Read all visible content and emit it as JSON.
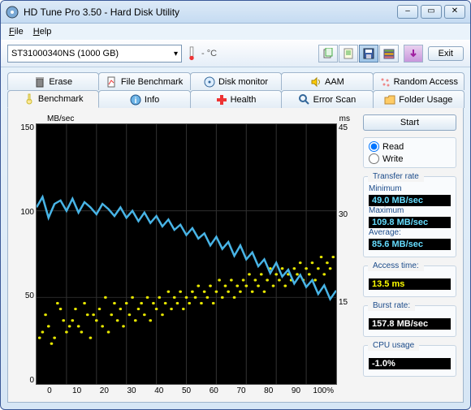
{
  "title": "HD Tune Pro 3.50 - Hard Disk Utility",
  "menu": {
    "file": "File",
    "help": "Help"
  },
  "drive": "ST31000340NS (1000 GB)",
  "temp_label": "- °C",
  "exit_label": "Exit",
  "tabs_top": {
    "erase": "Erase",
    "file_bench": "File Benchmark",
    "disk_mon": "Disk monitor",
    "aam": "AAM",
    "random": "Random Access"
  },
  "tabs_bottom": {
    "benchmark": "Benchmark",
    "info": "Info",
    "health": "Health",
    "error": "Error Scan",
    "folder": "Folder Usage"
  },
  "start_label": "Start",
  "mode": {
    "read": "Read",
    "write": "Write",
    "selected": "read"
  },
  "stats": {
    "transfer_hdr": "Transfer rate",
    "min_label": "Minimum",
    "min_val": "49.0 MB/sec",
    "max_label": "Maximum",
    "max_val": "109.8 MB/sec",
    "avg_label": "Average:",
    "avg_val": "85.6 MB/sec",
    "access_hdr": "Access time:",
    "access_val": "13.5 ms",
    "burst_hdr": "Burst rate:",
    "burst_val": "157.8 MB/sec",
    "cpu_hdr": "CPU usage",
    "cpu_val": "-1.0%"
  },
  "chart": {
    "y_left_label": "MB/sec",
    "y_right_label": "ms",
    "y_left_ticks": [
      "150",
      "100",
      "50",
      "0"
    ],
    "y_right_ticks": [
      "45",
      "30",
      "15",
      ""
    ],
    "x_ticks": [
      "0",
      "10",
      "20",
      "30",
      "40",
      "50",
      "60",
      "70",
      "80",
      "90",
      "100%"
    ],
    "line_color": "#48b4e6",
    "scatter_color": "#e6e600",
    "grid_color": "#2e2e2e",
    "background": "#000000",
    "transfer_points": [
      [
        0,
        102
      ],
      [
        2,
        108
      ],
      [
        4,
        96
      ],
      [
        6,
        104
      ],
      [
        8,
        106
      ],
      [
        10,
        100
      ],
      [
        12,
        107
      ],
      [
        14,
        99
      ],
      [
        16,
        105
      ],
      [
        18,
        102
      ],
      [
        20,
        98
      ],
      [
        22,
        104
      ],
      [
        24,
        101
      ],
      [
        26,
        97
      ],
      [
        28,
        102
      ],
      [
        30,
        96
      ],
      [
        32,
        100
      ],
      [
        34,
        94
      ],
      [
        36,
        99
      ],
      [
        38,
        93
      ],
      [
        40,
        97
      ],
      [
        42,
        91
      ],
      [
        44,
        95
      ],
      [
        46,
        89
      ],
      [
        48,
        92
      ],
      [
        50,
        86
      ],
      [
        52,
        90
      ],
      [
        54,
        84
      ],
      [
        56,
        87
      ],
      [
        58,
        80
      ],
      [
        60,
        85
      ],
      [
        62,
        78
      ],
      [
        64,
        82
      ],
      [
        66,
        74
      ],
      [
        68,
        80
      ],
      [
        70,
        72
      ],
      [
        72,
        76
      ],
      [
        74,
        68
      ],
      [
        76,
        72
      ],
      [
        78,
        64
      ],
      [
        80,
        70
      ],
      [
        82,
        62
      ],
      [
        84,
        66
      ],
      [
        86,
        58
      ],
      [
        88,
        63
      ],
      [
        90,
        56
      ],
      [
        92,
        60
      ],
      [
        94,
        52
      ],
      [
        96,
        57
      ],
      [
        98,
        49
      ],
      [
        100,
        54
      ]
    ],
    "access_points": [
      [
        1,
        8
      ],
      [
        3,
        12
      ],
      [
        5,
        7
      ],
      [
        7,
        14
      ],
      [
        2,
        9
      ],
      [
        9,
        11
      ],
      [
        11,
        10
      ],
      [
        13,
        13
      ],
      [
        15,
        9
      ],
      [
        17,
        12
      ],
      [
        4,
        10
      ],
      [
        6,
        8
      ],
      [
        8,
        13
      ],
      [
        10,
        9
      ],
      [
        12,
        11
      ],
      [
        14,
        10
      ],
      [
        16,
        14
      ],
      [
        18,
        8
      ],
      [
        19,
        12
      ],
      [
        20,
        11
      ],
      [
        21,
        13
      ],
      [
        22,
        10
      ],
      [
        23,
        15
      ],
      [
        24,
        9
      ],
      [
        25,
        12
      ],
      [
        26,
        14
      ],
      [
        27,
        11
      ],
      [
        28,
        13
      ],
      [
        29,
        10
      ],
      [
        30,
        14
      ],
      [
        31,
        12
      ],
      [
        32,
        15
      ],
      [
        33,
        11
      ],
      [
        34,
        13
      ],
      [
        35,
        14
      ],
      [
        36,
        12
      ],
      [
        37,
        15
      ],
      [
        38,
        11
      ],
      [
        39,
        14
      ],
      [
        40,
        13
      ],
      [
        41,
        15
      ],
      [
        42,
        12
      ],
      [
        43,
        14
      ],
      [
        44,
        16
      ],
      [
        45,
        13
      ],
      [
        46,
        15
      ],
      [
        47,
        14
      ],
      [
        48,
        16
      ],
      [
        49,
        13
      ],
      [
        50,
        15
      ],
      [
        51,
        14
      ],
      [
        52,
        16
      ],
      [
        53,
        15
      ],
      [
        54,
        17
      ],
      [
        55,
        14
      ],
      [
        56,
        16
      ],
      [
        57,
        15
      ],
      [
        58,
        17
      ],
      [
        59,
        14
      ],
      [
        60,
        16
      ],
      [
        61,
        18
      ],
      [
        62,
        15
      ],
      [
        63,
        17
      ],
      [
        64,
        16
      ],
      [
        65,
        18
      ],
      [
        66,
        15
      ],
      [
        67,
        17
      ],
      [
        68,
        16
      ],
      [
        69,
        18
      ],
      [
        70,
        17
      ],
      [
        71,
        19
      ],
      [
        72,
        16
      ],
      [
        73,
        18
      ],
      [
        74,
        17
      ],
      [
        75,
        19
      ],
      [
        76,
        16
      ],
      [
        77,
        18
      ],
      [
        78,
        20
      ],
      [
        79,
        17
      ],
      [
        80,
        19
      ],
      [
        81,
        18
      ],
      [
        82,
        20
      ],
      [
        83,
        17
      ],
      [
        84,
        19
      ],
      [
        85,
        18
      ],
      [
        86,
        20
      ],
      [
        87,
        19
      ],
      [
        88,
        21
      ],
      [
        89,
        18
      ],
      [
        90,
        20
      ],
      [
        91,
        19
      ],
      [
        92,
        21
      ],
      [
        93,
        18
      ],
      [
        94,
        20
      ],
      [
        95,
        22
      ],
      [
        96,
        19
      ],
      [
        97,
        21
      ],
      [
        98,
        20
      ],
      [
        99,
        22
      ]
    ]
  }
}
